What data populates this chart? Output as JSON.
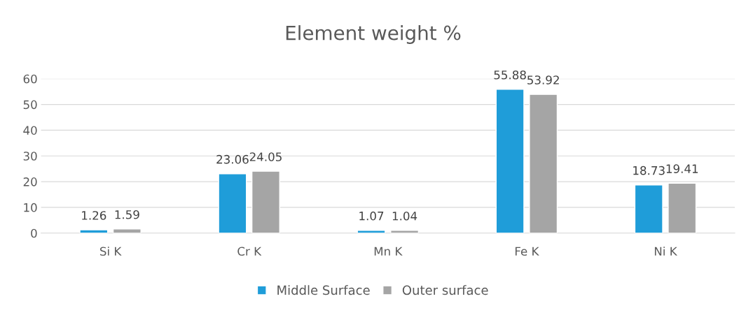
{
  "chart_data": {
    "type": "bar",
    "title": "Element weight %",
    "categories": [
      "Si K",
      "Cr K",
      "Mn K",
      "Fe K",
      "Ni K"
    ],
    "series": [
      {
        "name": "Middle Surface",
        "color": "#1f9dd9",
        "values": [
          1.26,
          23.06,
          1.07,
          55.88,
          18.73
        ]
      },
      {
        "name": "Outer surface",
        "color": "#a5a5a5",
        "values": [
          1.59,
          24.05,
          1.04,
          53.92,
          19.41
        ]
      }
    ],
    "ylim": [
      0,
      60
    ],
    "yticks": [
      0,
      10,
      20,
      30,
      40,
      50,
      60
    ],
    "grid": "y",
    "legend": "bottom",
    "data_labels": true
  }
}
